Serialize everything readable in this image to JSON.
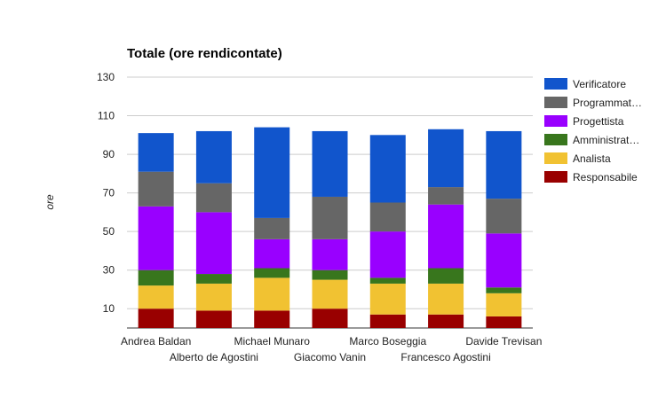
{
  "chart_data": {
    "type": "bar",
    "stacked": true,
    "title": "Totale (ore rendicontate)",
    "xlabel": "",
    "ylabel": "ore",
    "ylim": [
      0,
      130
    ],
    "yticks": [
      10,
      30,
      50,
      70,
      90,
      110,
      130
    ],
    "grid": true,
    "legend_position": "right",
    "categories": [
      "Andrea Baldan",
      "Alberto de Agostini",
      "Michael Munaro",
      "Giacomo Vanin",
      "Marco Boseggia",
      "Francesco Agostini",
      "Davide Trevisan"
    ],
    "series": [
      {
        "name": "Responsabile",
        "legend_label": "Responsabile",
        "color": "#990000",
        "values": [
          10,
          9,
          9,
          10,
          7,
          7,
          6
        ]
      },
      {
        "name": "Analista",
        "legend_label": "Analista",
        "color": "#f1c232",
        "values": [
          12,
          14,
          17,
          15,
          16,
          16,
          12
        ]
      },
      {
        "name": "Amministratore",
        "legend_label": "Amministrat…",
        "color": "#38761d",
        "values": [
          8,
          5,
          5,
          5,
          3,
          8,
          3
        ]
      },
      {
        "name": "Progettista",
        "legend_label": "Progettista",
        "color": "#9900ff",
        "values": [
          33,
          32,
          15,
          16,
          24,
          33,
          28
        ]
      },
      {
        "name": "Programmatore",
        "legend_label": "Programmat…",
        "color": "#666666",
        "values": [
          18,
          15,
          11,
          22,
          15,
          9,
          18
        ]
      },
      {
        "name": "Verificatore",
        "legend_label": "Verificatore",
        "color": "#1155cc",
        "values": [
          20,
          27,
          47,
          34,
          35,
          30,
          35
        ]
      }
    ]
  }
}
